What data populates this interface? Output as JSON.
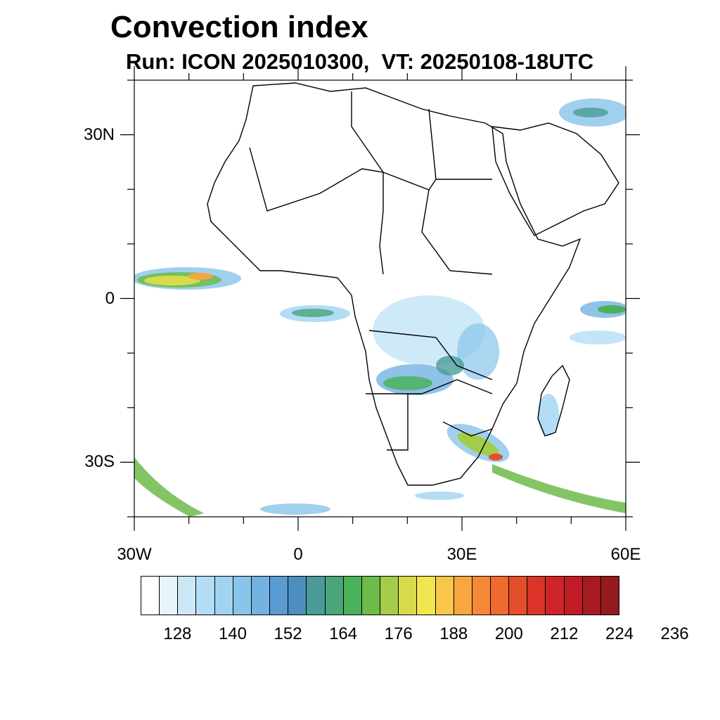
{
  "title": "Convection index",
  "subtitle": "Run: ICON 2025010300,  VT: 20250108-18UTC",
  "map": {
    "extent": {
      "lon": [
        -30,
        60
      ],
      "lat": [
        -40,
        40
      ]
    },
    "lat_ticks": [
      {
        "value": 30,
        "label": "30N"
      },
      {
        "value": 0,
        "label": "0"
      },
      {
        "value": -30,
        "label": "30S"
      }
    ],
    "lon_ticks": [
      {
        "value": -30,
        "label": "30W"
      },
      {
        "value": 0,
        "label": "0"
      },
      {
        "value": 30,
        "label": "30E"
      },
      {
        "value": 60,
        "label": "60E"
      }
    ],
    "coastline_color": "#000000"
  },
  "colorbar": {
    "colors": [
      "#ffffff",
      "#e8f4fb",
      "#cce8f6",
      "#b3def5",
      "#9fd5f2",
      "#89c4ea",
      "#74b2e2",
      "#5a9bd2",
      "#4d8fbf",
      "#4b9b98",
      "#4aa57a",
      "#4bb15a",
      "#6dbb4a",
      "#a3cc4a",
      "#d7db4a",
      "#f0e64e",
      "#f7c64a",
      "#f7a640",
      "#f48838",
      "#ee6a2e",
      "#e44e2a",
      "#da3328",
      "#cf2428",
      "#c01c26",
      "#a81a22",
      "#941a1e"
    ],
    "labels": [
      "128",
      "140",
      "152",
      "164",
      "176",
      "188",
      "200",
      "212",
      "224",
      "236"
    ]
  }
}
